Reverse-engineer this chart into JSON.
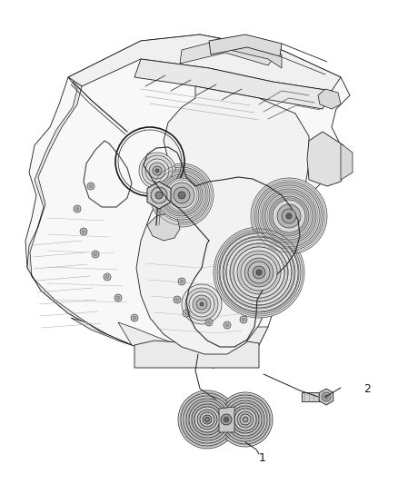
{
  "background_color": "#ffffff",
  "fig_width": 4.38,
  "fig_height": 5.33,
  "dpi": 100,
  "label1": "1",
  "label2": "2",
  "line_color": "#1a1a1a",
  "fill_light": "#f5f5f5",
  "fill_mid": "#e8e8e8",
  "fill_dark": "#d0d0d0"
}
